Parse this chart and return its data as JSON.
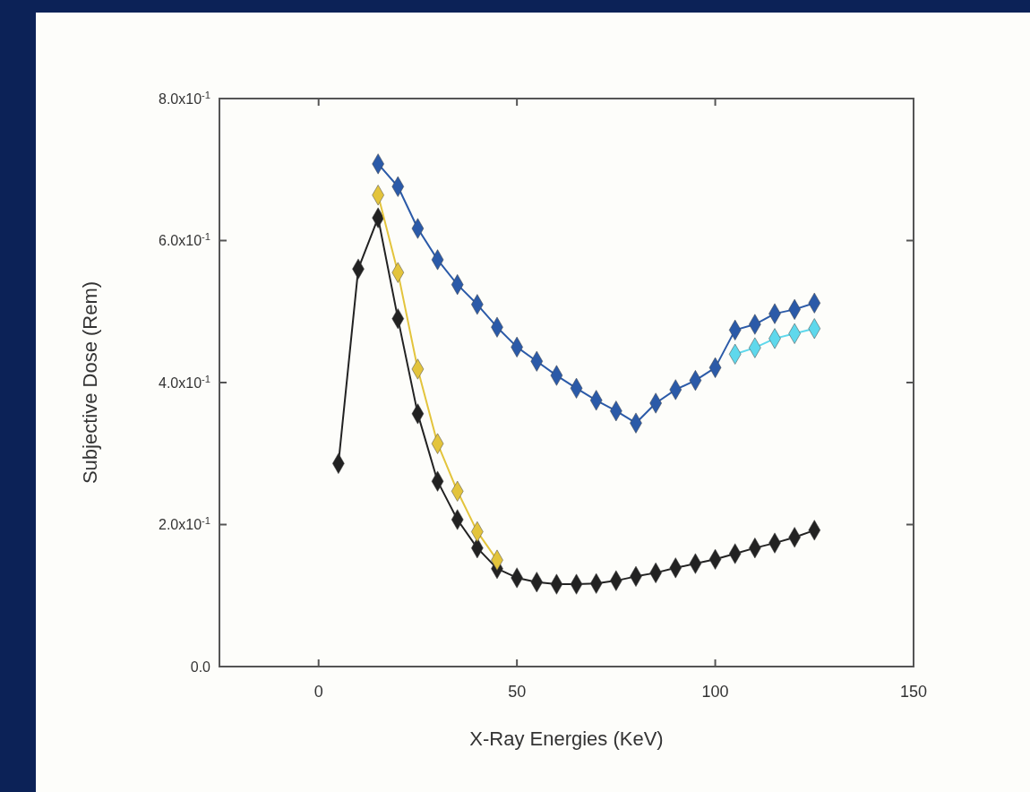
{
  "chart_data": {
    "type": "line",
    "xlabel": "X-Ray Energies (KeV)",
    "ylabel": "Subjective Dose (Rem)",
    "xlim": [
      -25,
      150
    ],
    "xticks": [
      0,
      50,
      100,
      150
    ],
    "ylim": [
      0,
      0.8
    ],
    "yticks": [
      {
        "value": 0,
        "label": "0.0"
      },
      {
        "value": 0.2,
        "label": "2.0x10$^{-1}$"
      },
      {
        "value": 0.4,
        "label": "4.0x10$^{-1}$"
      },
      {
        "value": 0.6,
        "label": "6.0x10$^{-1}$"
      },
      {
        "value": 0.8,
        "label": "8.0x10$^{-1}$"
      }
    ],
    "grid": false,
    "marker": "diamond",
    "line_style": "solid",
    "series": [
      {
        "color": "#222222",
        "x": [
          5,
          10,
          15,
          20,
          25,
          30,
          35,
          40,
          45,
          50,
          55,
          60,
          65,
          70,
          75,
          80,
          85,
          90,
          95,
          100,
          105,
          110,
          115,
          120,
          125
        ],
        "values": [
          0.286,
          0.56,
          0.632,
          0.49,
          0.356,
          0.261,
          0.207,
          0.167,
          0.138,
          0.125,
          0.119,
          0.116,
          0.116,
          0.117,
          0.121,
          0.127,
          0.132,
          0.139,
          0.145,
          0.151,
          0.159,
          0.167,
          0.174,
          0.182,
          0.192
        ]
      },
      {
        "color": "#e3c43c",
        "x": [
          15,
          20,
          25,
          30,
          35,
          40,
          45
        ],
        "values": [
          0.664,
          0.555,
          0.419,
          0.314,
          0.247,
          0.19,
          0.15
        ]
      },
      {
        "color": "#2b5aa8",
        "x": [
          15,
          20,
          25,
          30,
          35,
          40,
          45,
          50,
          55,
          60,
          65,
          70,
          75,
          80,
          85,
          90,
          95,
          100,
          105,
          110,
          115,
          120,
          125
        ],
        "values": [
          0.708,
          0.676,
          0.617,
          0.573,
          0.538,
          0.51,
          0.478,
          0.45,
          0.43,
          0.41,
          0.392,
          0.375,
          0.36,
          0.343,
          0.371,
          0.39,
          0.403,
          0.421,
          0.474,
          0.482,
          0.497,
          0.503,
          0.512
        ]
      },
      {
        "color": "#5fd8ec",
        "x": [
          105,
          110,
          115,
          120,
          125
        ],
        "values": [
          0.44,
          0.449,
          0.462,
          0.469,
          0.476
        ]
      }
    ]
  }
}
